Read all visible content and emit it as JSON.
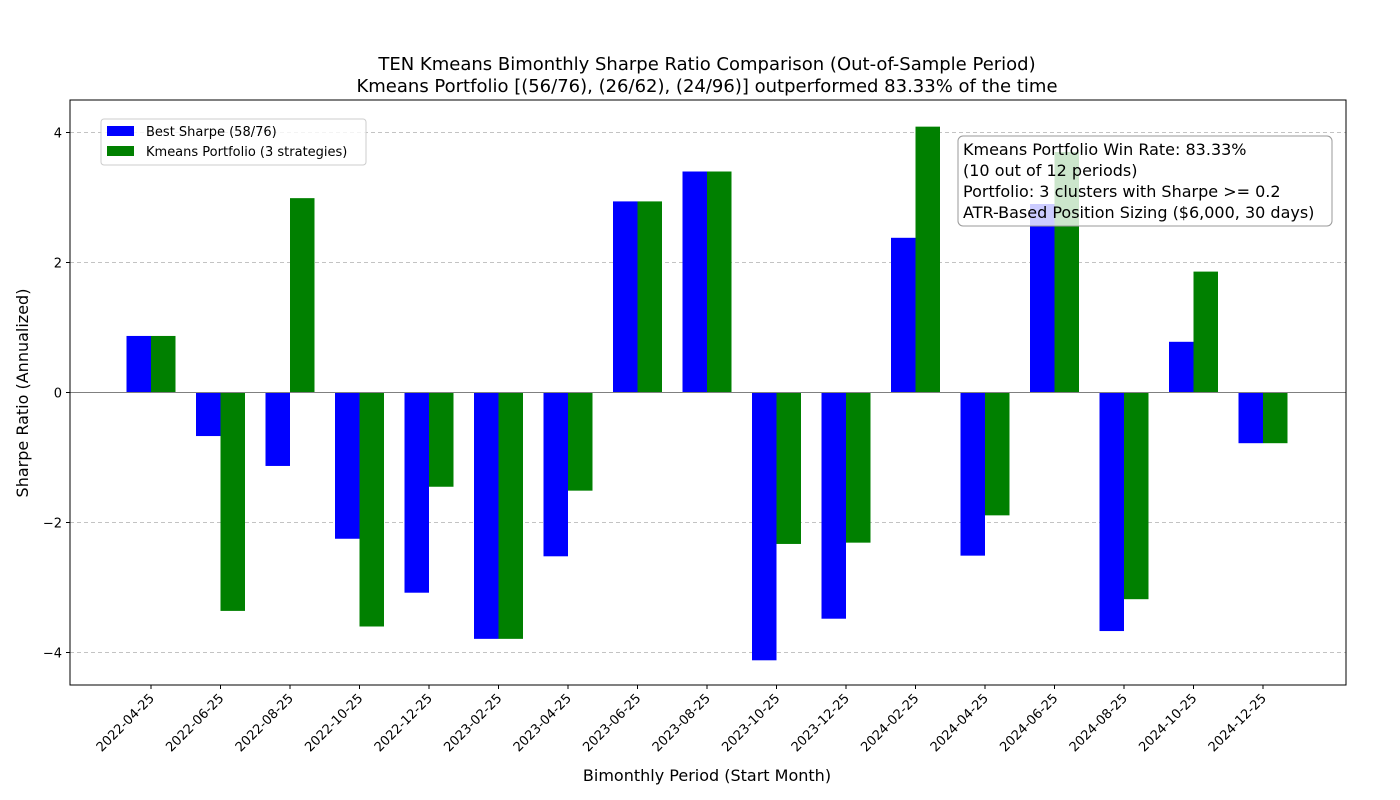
{
  "chart_data": {
    "type": "bar",
    "title": "TEN Kmeans Bimonthly Sharpe Ratio Comparison (Out-of-Sample Period)",
    "subtitle": "Kmeans Portfolio [(56/76), (26/62), (24/96)] outperformed 83.33% of the time",
    "xlabel": "Bimonthly Period (Start Month)",
    "ylabel": "Sharpe Ratio (Annualized)",
    "ylim": [
      -4.5,
      4.5
    ],
    "yticks": [
      -4,
      -2,
      0,
      2,
      4
    ],
    "ytick_labels": [
      "−4",
      "−2",
      "0",
      "2",
      "4"
    ],
    "grid": "horizontal dashed",
    "legend_position": "top-left",
    "categories": [
      "2022-04-25",
      "2022-06-25",
      "2022-08-25",
      "2022-10-25",
      "2022-12-25",
      "2023-02-25",
      "2023-04-25",
      "2023-06-25",
      "2023-08-25",
      "2023-10-25",
      "2023-12-25",
      "2024-02-25",
      "2024-04-25",
      "2024-06-25",
      "2024-08-25",
      "2024-10-25",
      "2024-12-25"
    ],
    "series": [
      {
        "name": "Best Sharpe (58/76)",
        "color": "#0000ff",
        "values": [
          0.87,
          -0.67,
          -1.13,
          -2.25,
          -3.08,
          -3.79,
          -2.52,
          2.94,
          3.4,
          -4.12,
          -3.48,
          2.38,
          -2.51,
          2.9,
          -3.67,
          0.78,
          -0.78
        ]
      },
      {
        "name": "Kmeans Portfolio (3 strategies)",
        "color": "#008000",
        "values": [
          0.87,
          -3.36,
          2.99,
          -3.6,
          -1.45,
          -3.79,
          -1.51,
          2.94,
          3.4,
          -2.33,
          -2.31,
          4.09,
          -1.89,
          3.7,
          -3.18,
          1.86,
          -0.78
        ]
      }
    ],
    "info_box": {
      "lines": [
        "Kmeans Portfolio Win Rate: 83.33%",
        "(10 out of 12 periods)",
        "Portfolio: 3 clusters with Sharpe >= 0.2",
        "ATR-Based Position Sizing ($6,000, 30 days)"
      ],
      "position": "top-right"
    }
  }
}
